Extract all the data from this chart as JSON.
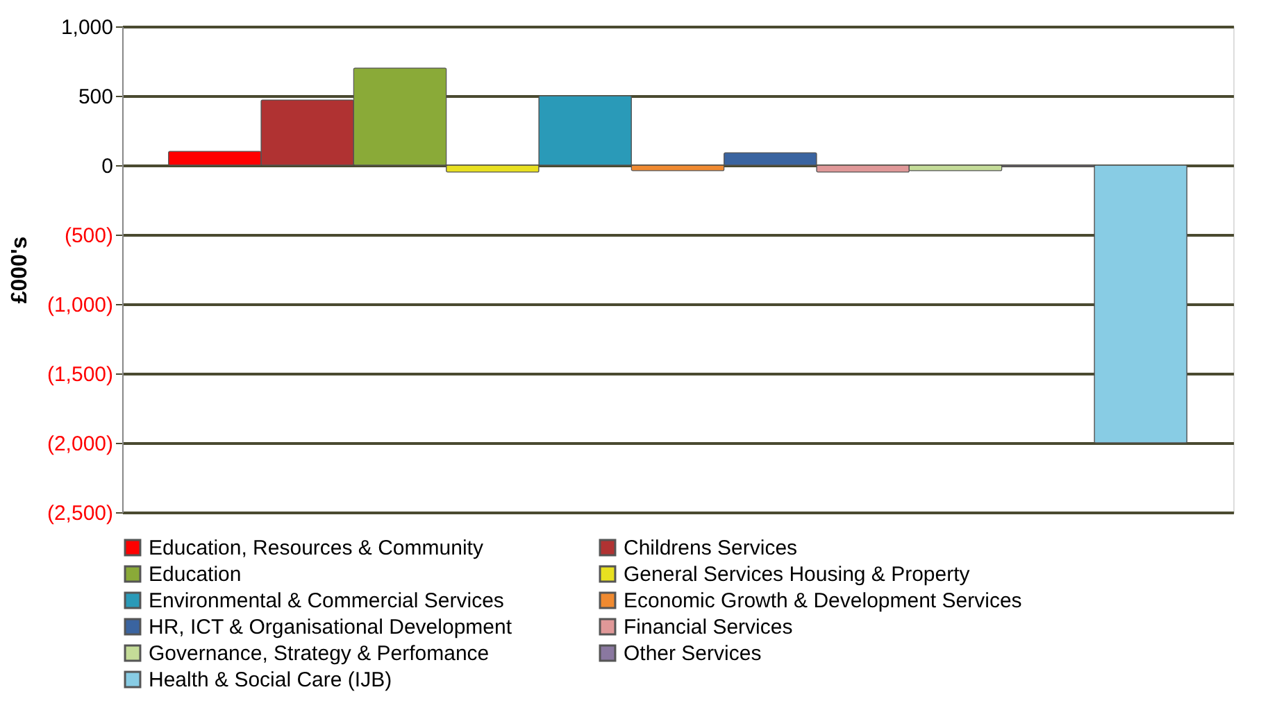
{
  "chart_data": {
    "type": "bar",
    "ylabel": "£000's",
    "categories": [
      null,
      null,
      null,
      null,
      null,
      null,
      null,
      null,
      null,
      null,
      null
    ],
    "series": [
      {
        "name": "Education, Resources & Community",
        "color": "#ff0000",
        "values": [
          100,
          null,
          null,
          null,
          null,
          null,
          null,
          null,
          null,
          null,
          null
        ]
      },
      {
        "name": "Childrens Services",
        "color": "#b03232",
        "values": [
          null,
          470,
          null,
          null,
          null,
          null,
          null,
          null,
          null,
          null,
          null
        ]
      },
      {
        "name": "Education",
        "color": "#8aaa38",
        "values": [
          null,
          null,
          700,
          null,
          null,
          null,
          null,
          null,
          null,
          null,
          null
        ]
      },
      {
        "name": "General Services Housing & Property",
        "color": "#e8e020",
        "values": [
          null,
          null,
          null,
          -50,
          null,
          null,
          null,
          null,
          null,
          null,
          null
        ]
      },
      {
        "name": "Environmental & Commercial Services",
        "color": "#2a9ab8",
        "values": [
          null,
          null,
          null,
          null,
          500,
          null,
          null,
          null,
          null,
          null,
          null
        ]
      },
      {
        "name": "Economic Growth & Development Services",
        "color": "#f08a30",
        "values": [
          null,
          null,
          null,
          null,
          null,
          -40,
          null,
          null,
          null,
          null,
          null
        ]
      },
      {
        "name": "HR, ICT & Organisational Development",
        "color": "#3a64a0",
        "values": [
          null,
          null,
          null,
          null,
          null,
          null,
          90,
          null,
          null,
          null,
          null
        ]
      },
      {
        "name": "Financial Services",
        "color": "#e09898",
        "values": [
          null,
          null,
          null,
          null,
          null,
          null,
          null,
          -50,
          null,
          null,
          null
        ]
      },
      {
        "name": "Governance, Strategy & Perfomance",
        "color": "#c4dc98",
        "values": [
          null,
          null,
          null,
          null,
          null,
          null,
          null,
          null,
          -40,
          null,
          null
        ]
      },
      {
        "name": "Other Services",
        "color": "#8a78a0",
        "values": [
          null,
          null,
          null,
          null,
          null,
          null,
          null,
          null,
          null,
          -10,
          null
        ]
      },
      {
        "name": "Health & Social Care (IJB)",
        "color": "#88cce4",
        "values": [
          null,
          null,
          null,
          null,
          null,
          null,
          null,
          null,
          null,
          null,
          -2000
        ]
      }
    ],
    "ylim": [
      -2500,
      1000
    ],
    "yticks": [
      {
        "value": -2500,
        "label": "(2,500)"
      },
      {
        "value": -2000,
        "label": "(2,000)"
      },
      {
        "value": -1500,
        "label": "(1,500)"
      },
      {
        "value": -1000,
        "label": "(1,000)"
      },
      {
        "value": -500,
        "label": "(500)"
      },
      0,
      {
        "value": 500,
        "label": "500"
      },
      {
        "value": 1000,
        "label": "1,000"
      }
    ],
    "grid": "y",
    "legend": "bottom"
  }
}
